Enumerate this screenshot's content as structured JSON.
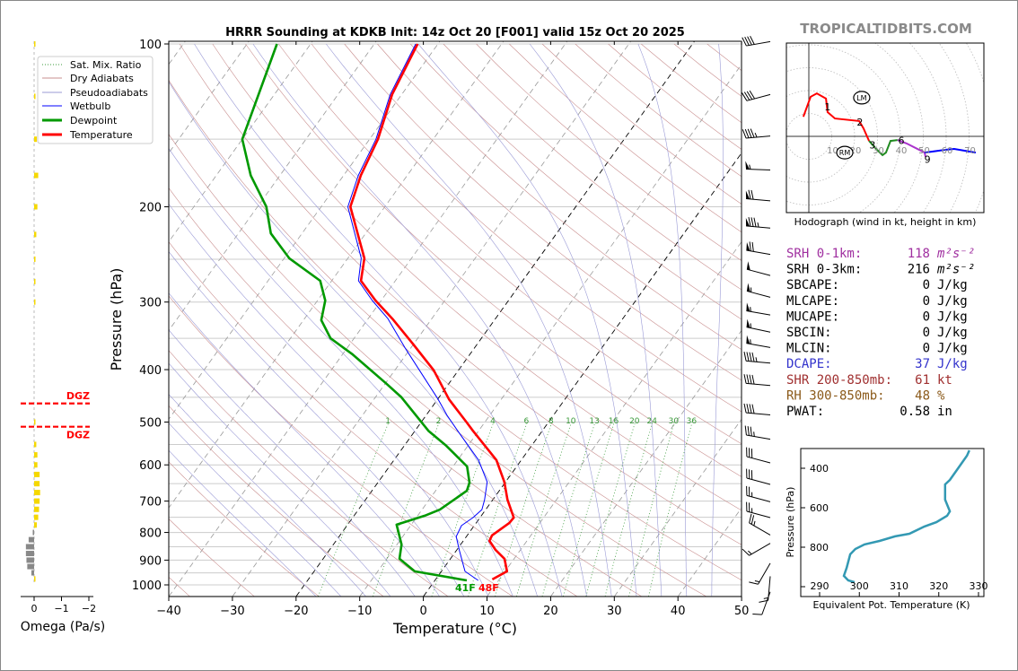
{
  "title": "HRRR Sounding at KDKB Init: 14z Oct 20 [F001] valid 15z Oct 20 2025",
  "watermark": "TROPICALTIDBITS.COM",
  "colors": {
    "temperature": "#ff0000",
    "dewpoint": "#009900",
    "wetbulb": "#0000ff",
    "dry_adiabat": "#c98f8f",
    "moist_adiabat": "#9a9ad6",
    "mixing_ratio": "#3a9a3a",
    "theta_e": "#3399b3",
    "dgz": "#ff0000"
  },
  "legend": [
    "Sat. Mix. Ratio",
    "Dry Adiabats",
    "Pseudoadiabats",
    "Wetbulb",
    "Dewpoint",
    "Temperature"
  ],
  "surface_labels": {
    "dewpoint": "41F",
    "temperature": "48F"
  },
  "chart_data": [
    {
      "type": "line",
      "subtype": "skew-t log-p",
      "xlabel": "Temperature (°C)",
      "ylabel": "Pressure (hPa)",
      "xlim": [
        -40,
        50
      ],
      "ylim": [
        1050,
        99
      ],
      "y_scale": "log",
      "x_ticks": [
        -40,
        -30,
        -20,
        -10,
        0,
        10,
        20,
        30,
        40,
        50
      ],
      "y_ticks": [
        100,
        200,
        300,
        400,
        500,
        600,
        700,
        800,
        900,
        1000
      ],
      "mixing_ratio_labels": [
        1,
        2,
        4,
        6,
        8,
        10,
        13,
        16,
        20,
        24,
        30,
        36
      ],
      "temperature": {
        "p": [
          100,
          124,
          150,
          175,
          200,
          249,
          274,
          298,
          322,
          358,
          401,
          454,
          500,
          519,
          588,
          645,
          696,
          751,
          768,
          810,
          829,
          862,
          895,
          944,
          977
        ],
        "t": [
          -63.2,
          -61.5,
          -58.7,
          -57.3,
          -55.4,
          -47.4,
          -45.4,
          -40.9,
          -36.2,
          -30.2,
          -23.9,
          -18.2,
          -12.9,
          -10.9,
          -3.9,
          -0.2,
          2.3,
          5.3,
          5.2,
          3.9,
          4.1,
          6.1,
          8.5,
          10.3,
          8.9
        ]
      },
      "dewpoint": {
        "p": [
          100,
          150,
          175,
          200,
          224,
          249,
          274,
          298,
          324,
          350,
          375,
          424,
          450,
          519,
          553,
          604,
          647,
          670,
          726,
          745,
          774,
          842,
          895,
          944,
          981
        ],
        "t": [
          -85.3,
          -80,
          -74.6,
          -68.6,
          -64.9,
          -59.2,
          -51.8,
          -48.8,
          -47.2,
          -43.7,
          -38.4,
          -29.9,
          -25.9,
          -17.9,
          -13.4,
          -7.8,
          -5.6,
          -5.1,
          -7.2,
          -8.9,
          -12.3,
          -9.3,
          -8,
          -4.2,
          5.0
        ]
      },
      "wetbulb": {
        "p": [
          100,
          124,
          150,
          175,
          200,
          249,
          274,
          298,
          322,
          364,
          454,
          486,
          519,
          588,
          645,
          696,
          726,
          751,
          777,
          814,
          862,
          944,
          981
        ],
        "t": [
          -63.5,
          -61.8,
          -59,
          -57.7,
          -55.8,
          -47.9,
          -45.8,
          -41.4,
          -36.9,
          -31,
          -19.9,
          -16.7,
          -13.3,
          -6.7,
          -2.9,
          -1.3,
          -0.6,
          -1.1,
          -2.0,
          -1.6,
          0.4,
          3.7,
          6.8
        ]
      },
      "wind_barbs": {
        "p": [
          99,
          124,
          148,
          171,
          195,
          219,
          245,
          268,
          294,
          317,
          341,
          364,
          389,
          428,
          485,
          538,
          595,
          652,
          702,
          751,
          809,
          838,
          912,
          964,
          1030
        ],
        "dir_deg": [
          260,
          255,
          265,
          272,
          275,
          275,
          280,
          285,
          285,
          280,
          282,
          280,
          275,
          275,
          275,
          280,
          285,
          285,
          285,
          285,
          300,
          240,
          210,
          185,
          200
        ],
        "speed_kt": [
          40,
          40,
          45,
          55,
          70,
          85,
          70,
          50,
          55,
          55,
          55,
          55,
          45,
          40,
          40,
          35,
          30,
          30,
          25,
          25,
          25,
          15,
          15,
          15,
          10
        ]
      }
    },
    {
      "type": "bar",
      "xlabel": "Omega (Pa/s)",
      "x_ticks": [
        "0",
        "−1",
        "−2"
      ],
      "xlim": [
        0.5,
        -2.2
      ],
      "p": [
        100,
        125,
        150,
        175,
        200,
        225,
        250,
        275,
        300,
        500,
        550,
        575,
        600,
        625,
        650,
        675,
        700,
        725,
        750,
        775,
        800,
        825,
        850,
        875,
        900,
        925,
        950,
        975
      ],
      "omega": [
        -0.02,
        -0.05,
        -0.1,
        -0.15,
        -0.12,
        -0.08,
        -0.05,
        -0.03,
        -0.02,
        -0.02,
        -0.08,
        -0.12,
        -0.12,
        -0.2,
        -0.2,
        -0.22,
        -0.2,
        -0.18,
        -0.15,
        -0.1,
        0.05,
        0.2,
        0.3,
        0.3,
        0.28,
        0.25,
        0.1,
        -0.05
      ],
      "dgz_label": "DGZ",
      "dgz_p": [
        462,
        510
      ]
    },
    {
      "type": "line",
      "title": "Hodograph (wind in kt, height in km)",
      "ring_labels": [
        10,
        20,
        30,
        40,
        50,
        60,
        70
      ],
      "segments": [
        {
          "color": "#ff0000",
          "u": [
            -2.4,
            0.8,
            3.5,
            7.5,
            8.2,
            11.4,
            22,
            23.9,
            26.3
          ],
          "v": [
            8.6,
            17.3,
            18.8,
            16.5,
            10.6,
            7.8,
            6.7,
            3.5,
            -2
          ]
        },
        {
          "color": "#228b22",
          "u": [
            26.3,
            29.8,
            32.2,
            33.7,
            35.7,
            38.8
          ],
          "v": [
            -2,
            -5.9,
            -8.2,
            -7.1,
            -2,
            -1.6
          ]
        },
        {
          "color": "#aa33cc",
          "u": [
            38.8,
            42.7,
            50.6,
            51
          ],
          "v": [
            -1.6,
            -3.1,
            -7.1,
            -9
          ]
        },
        {
          "color": "#0000ff",
          "u": [
            50.6,
            59.6,
            63.5,
            72.9
          ],
          "v": [
            -7.1,
            -5.9,
            -5.5,
            -7.1
          ]
        }
      ],
      "height_labels": [
        {
          "t": "1",
          "u": 8.2,
          "v": 13
        },
        {
          "t": "2",
          "u": 22.3,
          "v": 6.3
        },
        {
          "t": "3",
          "u": 27.8,
          "v": -3.8
        },
        {
          "t": "6",
          "u": 40.4,
          "v": -1.8
        },
        {
          "t": "9",
          "u": 51.8,
          "v": -10
        }
      ],
      "storm_motion": [
        {
          "t": "LM",
          "u": 23.1,
          "v": 16.9
        },
        {
          "t": "RM",
          "u": 15.7,
          "v": -7.1
        }
      ]
    },
    {
      "type": "line",
      "xlabel": "Equivalent Pot. Temperature (K)",
      "ylabel": "Pressure (hPa)",
      "x_ticks": [
        290,
        300,
        310,
        320,
        330
      ],
      "y_ticks": [
        400,
        600,
        800
      ],
      "theta_e": [
        327.7,
        327.1,
        325.5,
        322.8,
        321.6,
        321.6,
        322.8,
        322.1,
        319.4,
        316.4,
        312.6,
        309.0,
        305.1,
        301.3,
        299.0,
        297.7,
        296.8,
        296.1,
        297.2,
        298.8
      ],
      "p": [
        309,
        336,
        382,
        459,
        482,
        559,
        618,
        641,
        673,
        695,
        732,
        745,
        768,
        786,
        809,
        836,
        905,
        945,
        968,
        977
      ]
    }
  ],
  "stats": [
    {
      "label": "SRH 0-1km:",
      "value": "118",
      "unit": "m²s⁻²",
      "color": "#a030a0"
    },
    {
      "label": "SRH 0-3km:",
      "value": "216",
      "unit": "m²s⁻²",
      "color": "#000000"
    },
    {
      "label": "SBCAPE:",
      "value": "0",
      "unit": "J/kg",
      "color": "#000000"
    },
    {
      "label": "MLCAPE:",
      "value": "0",
      "unit": "J/kg",
      "color": "#000000"
    },
    {
      "label": "MUCAPE:",
      "value": "0",
      "unit": "J/kg",
      "color": "#000000"
    },
    {
      "label": "SBCIN:",
      "value": "0",
      "unit": "J/kg",
      "color": "#000000"
    },
    {
      "label": "MLCIN:",
      "value": "0",
      "unit": "J/kg",
      "color": "#000000"
    },
    {
      "label": "DCAPE:",
      "value": "37",
      "unit": "J/kg",
      "color": "#3333cc"
    },
    {
      "label": "SHR 200-850mb:",
      "value": "61",
      "unit": "kt",
      "color": "#a03030"
    },
    {
      "label": "RH 300-850mb:",
      "value": "48",
      "unit": "%",
      "color": "#8b5a1a"
    },
    {
      "label": "PWAT:",
      "value": "0.58",
      "unit": "in",
      "color": "#000000"
    }
  ]
}
